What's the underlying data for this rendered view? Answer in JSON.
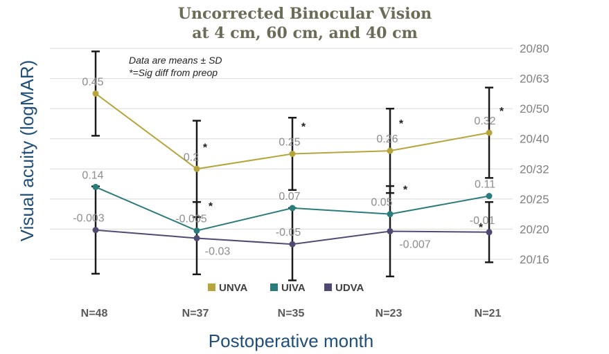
{
  "chart_data": {
    "type": "line",
    "title_lines": [
      "Uncorrected Binocular Vision",
      "at 4 cm, 60 cm, and 40 cm"
    ],
    "ylabel": "Visual acuity (logMAR)",
    "xlabel": "Postoperative month",
    "ylim": [
      -0.1,
      0.6
    ],
    "right_ticks": [
      {
        "value": 0.6,
        "label": "20/80"
      },
      {
        "value": 0.5,
        "label": "20/63"
      },
      {
        "value": 0.4,
        "label": "20/50"
      },
      {
        "value": 0.3,
        "label": "20/40"
      },
      {
        "value": 0.2,
        "label": "20/32"
      },
      {
        "value": 0.1,
        "label": "20/25"
      },
      {
        "value": 0.0,
        "label": "20/20"
      },
      {
        "value": -0.1,
        "label": "20/16"
      }
    ],
    "categories": [
      "N=48",
      "N=37",
      "N=35",
      "N=23",
      "N=21"
    ],
    "notes": [
      "Data are means ± SD",
      "*=Sig diff from preop"
    ],
    "series": [
      {
        "name": "UNVA",
        "color": "#b5a53a",
        "values": [
          0.45,
          0.2,
          0.25,
          0.26,
          0.32
        ],
        "labels": [
          "0.45",
          "0.2",
          "0.25",
          "0.26",
          "0.32"
        ],
        "sd": [
          0.14,
          0.16,
          0.12,
          0.14,
          0.15
        ],
        "stars": [
          false,
          true,
          true,
          true,
          true
        ]
      },
      {
        "name": "UIVA",
        "color": "#2a7b7b",
        "values": [
          0.14,
          -0.005,
          0.07,
          0.05,
          0.11
        ],
        "labels": [
          "0.14",
          "-0.005",
          "0.07",
          "0.05",
          "0.11"
        ],
        "sd": null,
        "stars": [
          false,
          true,
          false,
          true,
          false
        ]
      },
      {
        "name": "UDVA",
        "color": "#4f4a72",
        "values": [
          -0.003,
          -0.03,
          -0.05,
          -0.007,
          -0.01
        ],
        "labels": [
          "-0.003",
          "-0.03",
          "-0.05",
          "-0.007",
          "-0.01"
        ],
        "sd": [
          0.145,
          0.12,
          0.12,
          0.15,
          0.1
        ],
        "stars": [
          false,
          false,
          false,
          false,
          true
        ]
      }
    ]
  }
}
